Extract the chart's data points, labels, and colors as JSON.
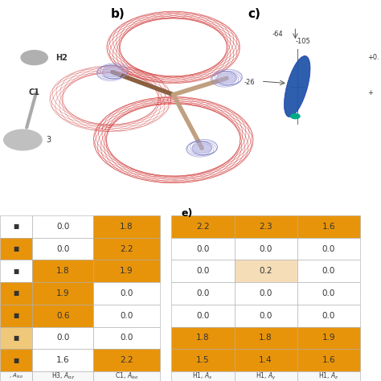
{
  "left_table": {
    "values": [
      [
        0.0,
        1.8
      ],
      [
        0.0,
        2.2
      ],
      [
        1.8,
        1.9
      ],
      [
        1.9,
        0.0
      ],
      [
        0.6,
        0.0
      ],
      [
        0.0,
        0.0
      ],
      [
        1.6,
        2.2
      ]
    ],
    "row_colors_col0": [
      "#FFFFFF",
      "#E8940A",
      "#FFFFFF",
      "#E8940A",
      "#E8940A",
      "#F0C87A",
      "#E8940A"
    ],
    "row_colors_col1": [
      "#FFFFFF",
      "#FFFFFF",
      "#E8940A",
      "#E8940A",
      "#E8940A",
      "#FFFFFF",
      "#FFFFFF"
    ],
    "row_colors_col2": [
      "#E8940A",
      "#E8940A",
      "#E8940A",
      "#FFFFFF",
      "#FFFFFF",
      "#FFFFFF",
      "#E8940A"
    ]
  },
  "right_table": {
    "values": [
      [
        2.2,
        2.3,
        1.6
      ],
      [
        0.0,
        0.0,
        0.0
      ],
      [
        0.0,
        0.2,
        0.0
      ],
      [
        0.0,
        0.0,
        0.0
      ],
      [
        0.0,
        0.0,
        0.0
      ],
      [
        1.8,
        1.8,
        1.9
      ],
      [
        1.5,
        1.4,
        1.6
      ]
    ],
    "row_colors_col0": [
      "#E8940A",
      "#FFFFFF",
      "#FFFFFF",
      "#FFFFFF",
      "#FFFFFF",
      "#E8940A",
      "#E8940A"
    ],
    "row_colors_col1": [
      "#E8940A",
      "#FFFFFF",
      "#F5DDB8",
      "#FFFFFF",
      "#FFFFFF",
      "#E8940A",
      "#E8940A"
    ],
    "row_colors_col2": [
      "#E8940A",
      "#FFFFFF",
      "#FFFFFF",
      "#FFFFFF",
      "#FFFFFF",
      "#E8940A",
      "#E8940A"
    ]
  },
  "col_headers_left": [
    "",
    "H3, $A_{\\alpha z}$",
    "C1, $A_{iso}$"
  ],
  "col_headers_right": [
    "H1, $A_x$",
    "H1, $A_y$",
    "H1, $A_z$"
  ],
  "orange": "#E8940A",
  "light_peach": "#F5DDB8",
  "white": "#FFFFFF",
  "bg": "#FFFFFF"
}
